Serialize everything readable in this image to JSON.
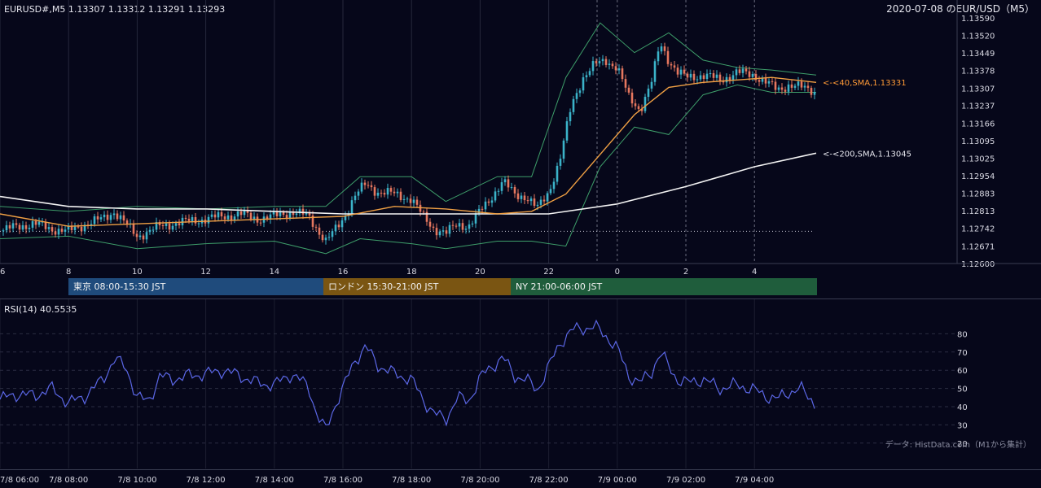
{
  "header": {
    "symbol_info": "EURUSD#,M5 1.13307 1.13312 1.13291 1.13293",
    "title_right": "2020-07-08 のEUR/USD（M5）"
  },
  "sessions": [
    {
      "label": "東京 08:00-15:30 JST",
      "color": "#1f4b7c"
    },
    {
      "label": "ロンドン 15:30-21:00 JST",
      "color": "#7a5512"
    },
    {
      "label": "NY 21:00-06:00 JST",
      "color": "#1f5d3c"
    }
  ],
  "rsi_label": "RSI(14) 40.5535",
  "source_note": "データ: HistData.com（M1から集計）",
  "chart_data": [
    {
      "type": "candlestick",
      "title": "EURUSD#,M5",
      "xlabel": "",
      "ylabel": "",
      "x_hour_range": [
        6,
        5.8
      ],
      "ylim": [
        1.126,
        1.1359
      ],
      "y_ticks": [
        "1.13590",
        "1.13520",
        "1.13449",
        "1.13378",
        "1.13307",
        "1.13237",
        "1.13166",
        "1.13095",
        "1.13025",
        "1.12954",
        "1.12883",
        "1.12813",
        "1.12742",
        "1.12671",
        "1.12600"
      ],
      "x_ticks": [
        "6",
        "8",
        "10",
        "12",
        "14",
        "16",
        "18",
        "20",
        "22",
        "0",
        "2",
        "4"
      ],
      "close_series": [
        [
          "6:00",
          1.1273
        ],
        [
          "6:30",
          1.1275
        ],
        [
          "7:00",
          1.1276
        ],
        [
          "7:30",
          1.1274
        ],
        [
          "8:00",
          1.1273
        ],
        [
          "8:30",
          1.1276
        ],
        [
          "9:00",
          1.1278
        ],
        [
          "9:20",
          1.1281
        ],
        [
          "9:40",
          1.1276
        ],
        [
          "10:00",
          1.1271
        ],
        [
          "10:20",
          1.1273
        ],
        [
          "10:40",
          1.1275
        ],
        [
          "11:00",
          1.1276
        ],
        [
          "11:30",
          1.1277
        ],
        [
          "12:00",
          1.1278
        ],
        [
          "12:30",
          1.1279
        ],
        [
          "13:00",
          1.128
        ],
        [
          "13:30",
          1.1278
        ],
        [
          "14:00",
          1.1279
        ],
        [
          "14:30",
          1.1281
        ],
        [
          "15:00",
          1.1279
        ],
        [
          "15:15",
          1.1274
        ],
        [
          "15:30",
          1.1269
        ],
        [
          "15:45",
          1.1273
        ],
        [
          "16:00",
          1.1278
        ],
        [
          "16:20",
          1.1287
        ],
        [
          "16:40",
          1.1292
        ],
        [
          "17:00",
          1.1289
        ],
        [
          "17:30",
          1.1288
        ],
        [
          "18:00",
          1.1286
        ],
        [
          "18:20",
          1.1279
        ],
        [
          "18:40",
          1.1274
        ],
        [
          "19:00",
          1.1272
        ],
        [
          "19:20",
          1.1276
        ],
        [
          "19:40",
          1.1275
        ],
        [
          "20:00",
          1.1281
        ],
        [
          "20:20",
          1.1287
        ],
        [
          "20:40",
          1.1293
        ],
        [
          "21:00",
          1.1288
        ],
        [
          "21:20",
          1.1287
        ],
        [
          "21:40",
          1.1282
        ],
        [
          "22:00",
          1.1289
        ],
        [
          "22:20",
          1.1302
        ],
        [
          "22:40",
          1.1324
        ],
        [
          "23:00",
          1.1335
        ],
        [
          "23:20",
          1.134
        ],
        [
          "23:40",
          1.1342
        ],
        [
          "0:00",
          1.1339
        ],
        [
          "0:20",
          1.1327
        ],
        [
          "0:40",
          1.1322
        ],
        [
          "1:00",
          1.1333
        ],
        [
          "1:15",
          1.1349
        ],
        [
          "1:30",
          1.1342
        ],
        [
          "1:45",
          1.1337
        ],
        [
          "2:00",
          1.1335
        ],
        [
          "2:30",
          1.1336
        ],
        [
          "3:00",
          1.1334
        ],
        [
          "3:30",
          1.1337
        ],
        [
          "4:00",
          1.1336
        ],
        [
          "4:20",
          1.1333
        ],
        [
          "4:40",
          1.133
        ],
        [
          "5:00",
          1.1332
        ],
        [
          "5:20",
          1.1331
        ],
        [
          "5:40",
          1.133
        ],
        [
          "5:48",
          1.1329
        ]
      ],
      "sma40": [
        [
          "6:00",
          1.128
        ],
        [
          "8:00",
          1.1275
        ],
        [
          "10:00",
          1.1276
        ],
        [
          "12:00",
          1.1277
        ],
        [
          "14:00",
          1.1278
        ],
        [
          "16:00",
          1.1279
        ],
        [
          "17:30",
          1.1283
        ],
        [
          "19:00",
          1.1282
        ],
        [
          "20:30",
          1.128
        ],
        [
          "21:30",
          1.1281
        ],
        [
          "22:30",
          1.1288
        ],
        [
          "23:30",
          1.1304
        ],
        [
          "0:30",
          1.132
        ],
        [
          "1:30",
          1.1331
        ],
        [
          "2:30",
          1.1333
        ],
        [
          "3:30",
          1.1334
        ],
        [
          "4:30",
          1.1335
        ],
        [
          "5:48",
          1.1333
        ]
      ],
      "sma200": [
        [
          "6:00",
          1.1287
        ],
        [
          "8:00",
          1.1283
        ],
        [
          "10:00",
          1.1282
        ],
        [
          "12:00",
          1.1282
        ],
        [
          "14:00",
          1.1281
        ],
        [
          "16:00",
          1.128
        ],
        [
          "18:00",
          1.128
        ],
        [
          "20:00",
          1.128
        ],
        [
          "22:00",
          1.128
        ],
        [
          "0:00",
          1.1284
        ],
        [
          "2:00",
          1.1291
        ],
        [
          "4:00",
          1.1299
        ],
        [
          "5:48",
          1.13045
        ]
      ],
      "bollinger_upper": [
        [
          "6:00",
          1.1283
        ],
        [
          "8:00",
          1.1281
        ],
        [
          "10:00",
          1.1283
        ],
        [
          "12:00",
          1.1282
        ],
        [
          "14:00",
          1.1283
        ],
        [
          "15:30",
          1.1283
        ],
        [
          "16:30",
          1.1295
        ],
        [
          "18:00",
          1.1295
        ],
        [
          "19:00",
          1.1285
        ],
        [
          "20:30",
          1.1295
        ],
        [
          "21:30",
          1.1295
        ],
        [
          "22:30",
          1.1335
        ],
        [
          "23:30",
          1.1357
        ],
        [
          "0:30",
          1.1345
        ],
        [
          "1:30",
          1.1353
        ],
        [
          "2:30",
          1.1342
        ],
        [
          "3:30",
          1.1339
        ],
        [
          "4:30",
          1.1338
        ],
        [
          "5:48",
          1.1336
        ]
      ],
      "bollinger_lower": [
        [
          "6:00",
          1.127
        ],
        [
          "8:00",
          1.1271
        ],
        [
          "10:00",
          1.1266
        ],
        [
          "12:00",
          1.1268
        ],
        [
          "14:00",
          1.1269
        ],
        [
          "15:30",
          1.1264
        ],
        [
          "16:30",
          1.127
        ],
        [
          "18:00",
          1.1268
        ],
        [
          "19:00",
          1.1266
        ],
        [
          "20:30",
          1.1269
        ],
        [
          "21:30",
          1.1269
        ],
        [
          "22:30",
          1.1267
        ],
        [
          "23:30",
          1.1299
        ],
        [
          "0:30",
          1.1315
        ],
        [
          "1:30",
          1.1312
        ],
        [
          "2:30",
          1.1328
        ],
        [
          "3:30",
          1.1332
        ],
        [
          "4:30",
          1.1329
        ],
        [
          "5:48",
          1.1329
        ]
      ],
      "previous_close_level": 1.1273,
      "annotations": [
        {
          "text": "<-<40,SMA,1.13331",
          "color": "#ff9a36",
          "y": 1.13331
        },
        {
          "text": "<-<200,SMA,1.13045",
          "color": "#e6e6ee",
          "y": 1.13045
        }
      ],
      "colors": {
        "up": "#3bb3c9",
        "down": "#e6775f",
        "sma40": "#f0a044",
        "sma200": "#f3f3f3",
        "bands": "#3e9e6a"
      }
    },
    {
      "type": "line",
      "title": "RSI(14)",
      "ylim": [
        15,
        90
      ],
      "y_ticks": [
        "80",
        "70",
        "60",
        "50",
        "40",
        "30",
        "20"
      ],
      "x_ticks": [
        "7/8 06:00",
        "7/8 08:00",
        "7/8 10:00",
        "7/8 12:00",
        "7/8 14:00",
        "7/8 16:00",
        "7/8 18:00",
        "7/8 20:00",
        "7/8 22:00",
        "7/9 00:00",
        "7/9 02:00",
        "7/9 04:00"
      ],
      "series": [
        {
          "values": [
            [
              "6:00",
              44
            ],
            [
              "6:30",
              47
            ],
            [
              "7:00",
              46
            ],
            [
              "7:30",
              50
            ],
            [
              "8:00",
              42
            ],
            [
              "8:30",
              46
            ],
            [
              "9:00",
              55
            ],
            [
              "9:20",
              66
            ],
            [
              "9:40",
              62
            ],
            [
              "10:00",
              45
            ],
            [
              "10:20",
              43
            ],
            [
              "10:40",
              57
            ],
            [
              "11:00",
              55
            ],
            [
              "11:30",
              57
            ],
            [
              "12:00",
              58
            ],
            [
              "12:30",
              60
            ],
            [
              "13:00",
              57
            ],
            [
              "13:30",
              53
            ],
            [
              "14:00",
              52
            ],
            [
              "14:30",
              58
            ],
            [
              "15:00",
              51
            ],
            [
              "15:15",
              35
            ],
            [
              "15:30",
              27
            ],
            [
              "15:45",
              40
            ],
            [
              "16:00",
              50
            ],
            [
              "16:20",
              65
            ],
            [
              "16:40",
              73
            ],
            [
              "17:00",
              63
            ],
            [
              "17:30",
              58
            ],
            [
              "18:00",
              55
            ],
            [
              "18:20",
              44
            ],
            [
              "18:40",
              36
            ],
            [
              "19:00",
              33
            ],
            [
              "19:20",
              45
            ],
            [
              "19:40",
              43
            ],
            [
              "20:00",
              56
            ],
            [
              "20:20",
              62
            ],
            [
              "20:40",
              67
            ],
            [
              "21:00",
              57
            ],
            [
              "21:20",
              55
            ],
            [
              "21:40",
              49
            ],
            [
              "22:00",
              62
            ],
            [
              "22:20",
              75
            ],
            [
              "22:40",
              82
            ],
            [
              "23:00",
              83
            ],
            [
              "23:20",
              84
            ],
            [
              "23:40",
              79
            ],
            [
              "0:00",
              72
            ],
            [
              "0:20",
              57
            ],
            [
              "0:40",
              53
            ],
            [
              "1:00",
              59
            ],
            [
              "1:15",
              70
            ],
            [
              "1:30",
              62
            ],
            [
              "1:45",
              55
            ],
            [
              "2:00",
              53
            ],
            [
              "2:30",
              55
            ],
            [
              "3:00",
              50
            ],
            [
              "3:30",
              52
            ],
            [
              "4:00",
              49
            ],
            [
              "4:20",
              46
            ],
            [
              "4:40",
              44
            ],
            [
              "5:00",
              48
            ],
            [
              "5:20",
              50
            ],
            [
              "5:40",
              44
            ],
            [
              "5:48",
              40.5
            ]
          ]
        }
      ],
      "color": "#5b67e6"
    }
  ]
}
